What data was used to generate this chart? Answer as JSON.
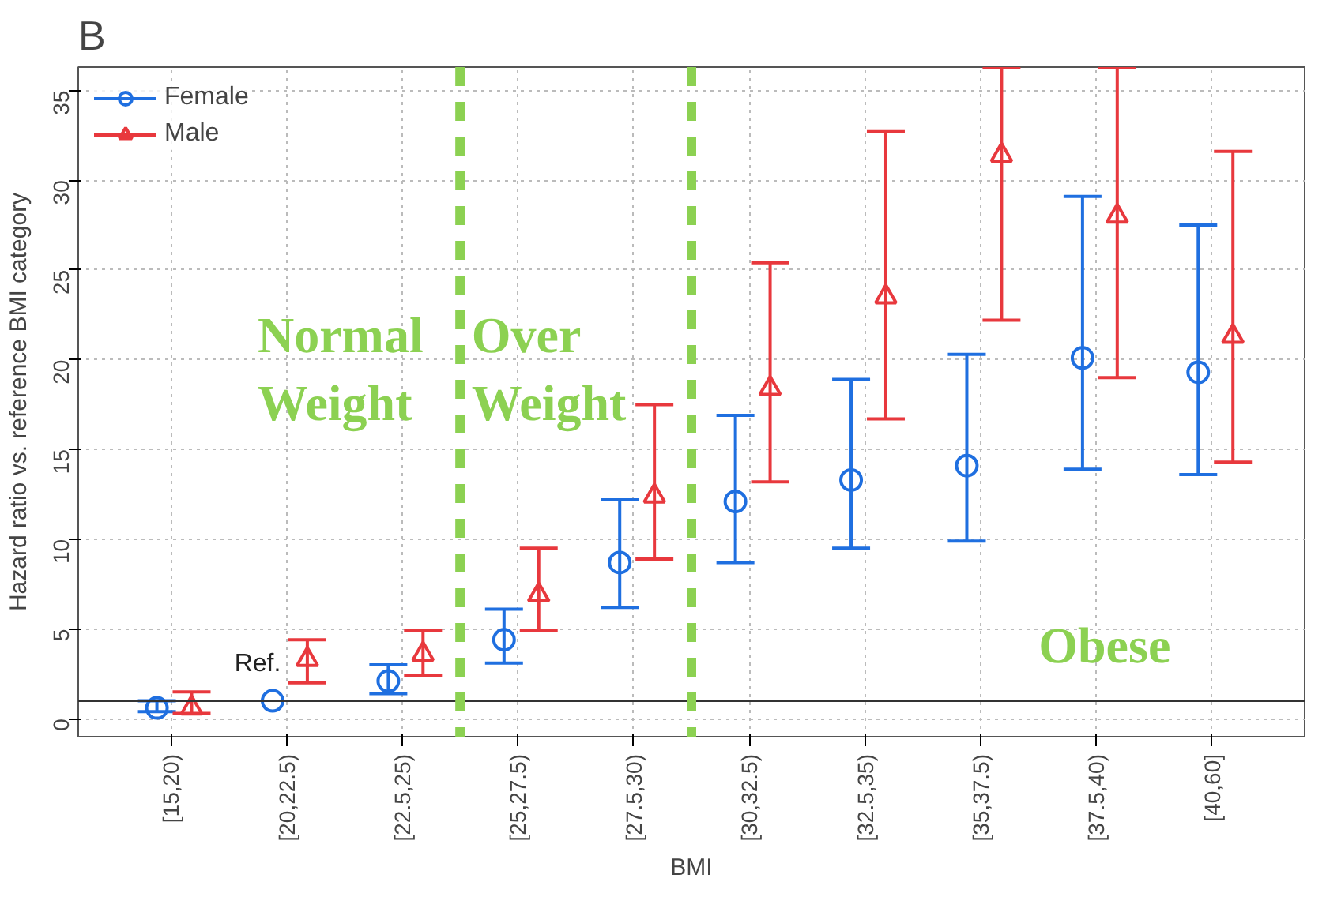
{
  "chart_data": {
    "type": "scatter",
    "title": "B",
    "xlabel": "BMI",
    "ylabel": "Hazard ratio vs. reference BMI category",
    "categories": [
      "[15,20)",
      "[20,22.5)",
      "[22.5,25)",
      "[25,27.5)",
      "[27.5,30)",
      "[30,32.5)",
      "[32.5,35)",
      "[35,37.5)",
      "[37.5,40)",
      "[40,60]"
    ],
    "series": [
      {
        "name": "Female",
        "color": "#1f6fe0",
        "marker": "circle",
        "values": [
          0.6,
          1.0,
          2.1,
          4.4,
          8.7,
          12.1,
          13.3,
          14.1,
          20.1,
          19.3
        ],
        "errors": [
          [
            0.4,
            1.0
          ],
          null,
          [
            1.4,
            3.0
          ],
          [
            3.1,
            6.1
          ],
          [
            6.2,
            12.2
          ],
          [
            8.7,
            16.9
          ],
          [
            9.5,
            18.9
          ],
          [
            9.9,
            20.3
          ],
          [
            13.9,
            29.1
          ],
          [
            13.6,
            27.5
          ]
        ]
      },
      {
        "name": "Male",
        "color": "#e8383d",
        "marker": "triangle",
        "values": [
          0.6,
          3.3,
          3.6,
          6.9,
          12.4,
          18.4,
          23.5,
          31.4,
          28.0,
          21.3
        ],
        "errors": [
          [
            0.3,
            1.5
          ],
          [
            2.0,
            4.4
          ],
          [
            2.4,
            4.9
          ],
          [
            4.9,
            9.5
          ],
          [
            8.9,
            17.5
          ],
          [
            13.2,
            25.4
          ],
          [
            16.7,
            32.7
          ],
          [
            22.2,
            36.3
          ],
          [
            19.0,
            36.3
          ],
          [
            14.3,
            31.6
          ]
        ]
      }
    ],
    "ylim": [
      -1,
      36.3
    ],
    "yticks": [
      0,
      5,
      10,
      15,
      20,
      25,
      30,
      35
    ],
    "grid": true,
    "legend": "top left",
    "ref_lines": [
      {
        "axis": "y",
        "value": 1,
        "color": "#333333",
        "line_style": "solid"
      }
    ],
    "annotations": [
      "Ref.",
      "Normal\nWeight",
      "Over\nWeight",
      "Obese"
    ]
  }
}
